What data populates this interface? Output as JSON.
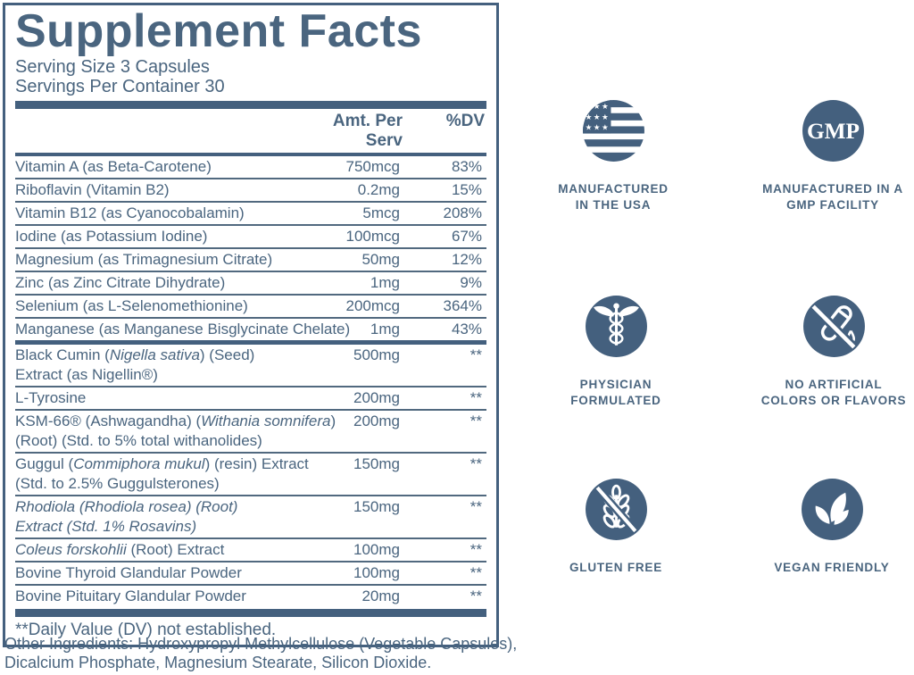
{
  "label": {
    "title": "Supplement Facts",
    "serving_size": "Serving Size 3 Capsules",
    "servings_per_container": "Servings Per Container 30",
    "columns": {
      "amount": "Amt. Per Serv",
      "dv": "%DV"
    },
    "sections": [
      {
        "rows": [
          {
            "lines": [
              [
                {
                  "t": "Vitamin A (as Beta-Carotene)"
                }
              ]
            ],
            "amount": "750mcg",
            "dv": "83%"
          },
          {
            "lines": [
              [
                {
                  "t": "Riboflavin (Vitamin B2)"
                }
              ]
            ],
            "amount": "0.2mg",
            "dv": "15%"
          },
          {
            "lines": [
              [
                {
                  "t": "Vitamin B12 (as Cyanocobalamin)"
                }
              ]
            ],
            "amount": "5mcg",
            "dv": "208%"
          },
          {
            "lines": [
              [
                {
                  "t": "Iodine (as Potassium Iodine)"
                }
              ]
            ],
            "amount": "100mcg",
            "dv": "67%"
          },
          {
            "lines": [
              [
                {
                  "t": "Magnesium (as Trimagnesium Citrate)"
                }
              ]
            ],
            "amount": "50mg",
            "dv": "12%"
          },
          {
            "lines": [
              [
                {
                  "t": "Zinc (as Zinc Citrate Dihydrate)"
                }
              ]
            ],
            "amount": "1mg",
            "dv": "9%"
          },
          {
            "lines": [
              [
                {
                  "t": "Selenium (as L-Selenomethionine)"
                }
              ]
            ],
            "amount": "200mcg",
            "dv": "364%"
          },
          {
            "lines": [
              [
                {
                  "t": "Manganese (as Manganese Bisglycinate Chelate)"
                }
              ]
            ],
            "amount": "1mg",
            "dv": "43%"
          }
        ]
      },
      {
        "rows": [
          {
            "lines": [
              [
                {
                  "t": "Black Cumin ("
                },
                {
                  "t": "Nigella sativa",
                  "i": true
                },
                {
                  "t": ") (Seed)"
                }
              ],
              [
                {
                  "t": "Extract (as Nigellin®)"
                }
              ]
            ],
            "amount": "500mg",
            "dv": "**"
          },
          {
            "lines": [
              [
                {
                  "t": "L-Tyrosine"
                }
              ]
            ],
            "amount": "200mg",
            "dv": "**"
          },
          {
            "lines": [
              [
                {
                  "t": "KSM-66® (Ashwagandha) ("
                },
                {
                  "t": "Withania somnifera",
                  "i": true
                },
                {
                  "t": ")"
                }
              ],
              [
                {
                  "t": "(Root) (Std. to 5% total withanolides)"
                }
              ]
            ],
            "amount": "200mg",
            "dv": "**"
          },
          {
            "lines": [
              [
                {
                  "t": "Guggul ("
                },
                {
                  "t": "Commiphora mukul",
                  "i": true
                },
                {
                  "t": ") (resin) Extract"
                }
              ],
              [
                {
                  "t": "(Std. to 2.5% Guggulsterones)"
                }
              ]
            ],
            "amount": "150mg",
            "dv": "**"
          },
          {
            "lines": [
              [
                {
                  "t": "Rhodiola (Rhodiola rosea) (Root)",
                  "i": true
                }
              ],
              [
                {
                  "t": "Extract (Std. 1% Rosavins)",
                  "i": true
                }
              ]
            ],
            "amount": "150mg",
            "dv": "**"
          },
          {
            "lines": [
              [
                {
                  "t": "Coleus forskohlii",
                  "i": true
                },
                {
                  "t": " (Root) Extract"
                }
              ]
            ],
            "amount": "100mg",
            "dv": "**"
          },
          {
            "lines": [
              [
                {
                  "t": "Bovine Thyroid Glandular Powder"
                }
              ]
            ],
            "amount": "100mg",
            "dv": "**"
          },
          {
            "lines": [
              [
                {
                  "t": "Bovine Pituitary Glandular Powder"
                }
              ]
            ],
            "amount": "20mg",
            "dv": "**"
          }
        ]
      }
    ],
    "footnote": "**Daily Value (DV) not established.",
    "other_ingredients_lines": [
      "Other Ingredients: Hydroxypropyl Methylcellulose (Vegetable Capsules),",
      "Dicalcium Phosphate, Magnesium Stearate, Silicon Dioxide."
    ]
  },
  "badges": [
    {
      "icon": "usa-flag",
      "line1": "MANUFACTURED",
      "line2": "IN THE USA"
    },
    {
      "icon": "gmp",
      "gmp_text": "GMP",
      "line1": "MANUFACTURED IN A",
      "line2": "GMP FACILITY"
    },
    {
      "icon": "caduceus",
      "line1": "PHYSICIAN",
      "line2": "FORMULATED"
    },
    {
      "icon": "no-artificial",
      "line1": "NO ARTIFICIAL",
      "line2": "COLORS OR FLAVORS"
    },
    {
      "icon": "gluten-free",
      "line1": "GLUTEN FREE",
      "line2": ""
    },
    {
      "icon": "vegan",
      "line1": "VEGAN FRIENDLY",
      "line2": ""
    }
  ],
  "colors": {
    "ink": "#4a657f",
    "accent": "#44607e"
  }
}
